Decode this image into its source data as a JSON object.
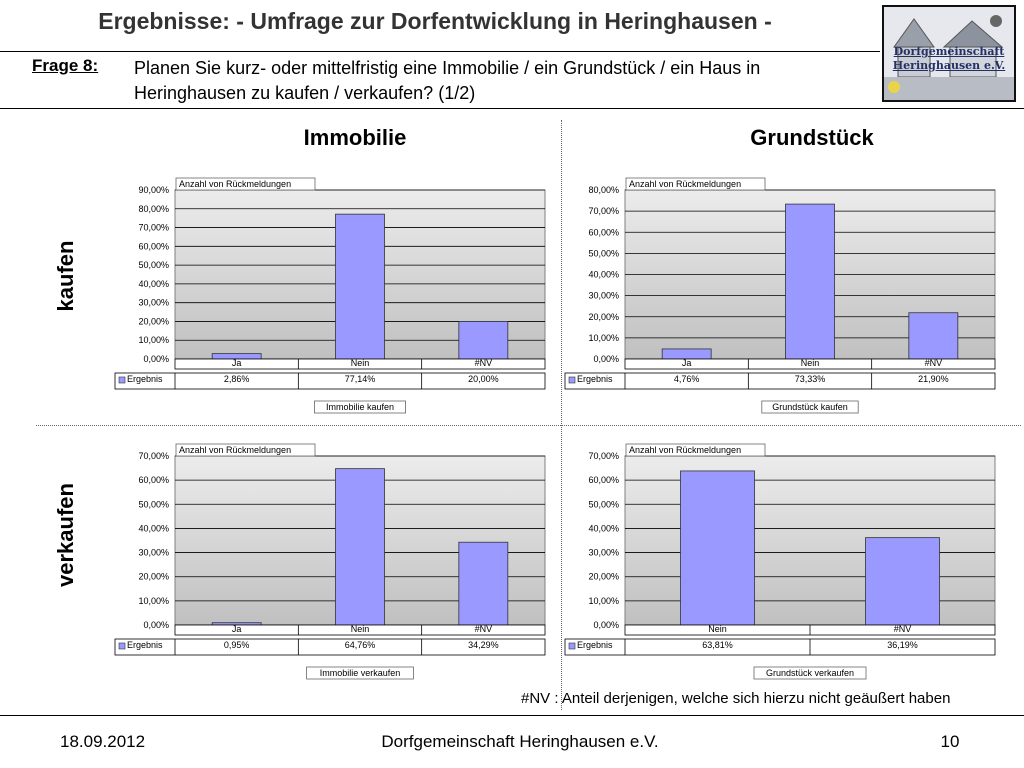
{
  "header": {
    "title": "Ergebnisse: - Umfrage zur Dorfentwicklung in Heringhausen -",
    "logo_line1": "Dorfgemeinschaft",
    "logo_line2": "Heringhausen e.V."
  },
  "question": {
    "label": "Frage 8:",
    "text": "Planen Sie kurz- oder mittelfristig eine Immobilie / ein Grundstück / ein Haus in Heringhausen zu kaufen / verkaufen? (1/2)"
  },
  "columns": {
    "left": "Immobilie",
    "right": "Grundstück"
  },
  "rows": {
    "top": "kaufen",
    "bottom": "verkaufen"
  },
  "note": "#NV :  Anteil derjenigen, welche sich hierzu nicht geäußert haben",
  "footer": {
    "date": "18.09.2012",
    "org": "Dorfgemeinschaft Heringhausen e.V.",
    "page": "10"
  },
  "style": {
    "bar_color": "#9999ff",
    "plot_fill": "#c0c0c0",
    "plot_fill_light": "#ececec"
  },
  "chart_data": [
    {
      "type": "bar",
      "title": "Immobilie kaufen",
      "field_label": "Anzahl von Rückmeldungen",
      "categories": [
        "Ja",
        "Nein",
        "#NV"
      ],
      "series": [
        {
          "name": "Ergebnis",
          "values": [
            2.86,
            77.14,
            20.0
          ]
        }
      ],
      "value_labels": [
        "2,86%",
        "77,14%",
        "20,00%"
      ],
      "ylim": [
        0,
        90
      ],
      "ytick_step": 10,
      "grid": true
    },
    {
      "type": "bar",
      "title": "Grundstück kaufen",
      "field_label": "Anzahl von Rückmeldungen",
      "categories": [
        "Ja",
        "Nein",
        "#NV"
      ],
      "series": [
        {
          "name": "Ergebnis",
          "values": [
            4.76,
            73.33,
            21.9
          ]
        }
      ],
      "value_labels": [
        "4,76%",
        "73,33%",
        "21,90%"
      ],
      "ylim": [
        0,
        80
      ],
      "ytick_step": 10,
      "grid": true
    },
    {
      "type": "bar",
      "title": "Immobilie verkaufen",
      "field_label": "Anzahl von Rückmeldungen",
      "categories": [
        "Ja",
        "Nein",
        "#NV"
      ],
      "series": [
        {
          "name": "Ergebnis",
          "values": [
            0.95,
            64.76,
            34.29
          ]
        }
      ],
      "value_labels": [
        "0,95%",
        "64,76%",
        "34,29%"
      ],
      "ylim": [
        0,
        70
      ],
      "ytick_step": 10,
      "grid": true
    },
    {
      "type": "bar",
      "title": "Grundstück verkaufen",
      "field_label": "Anzahl von Rückmeldungen",
      "categories": [
        "Nein",
        "#NV"
      ],
      "series": [
        {
          "name": "Ergebnis",
          "values": [
            63.81,
            36.19
          ]
        }
      ],
      "value_labels": [
        "63,81%",
        "36,19%"
      ],
      "ylim": [
        0,
        70
      ],
      "ytick_step": 10,
      "grid": true
    }
  ]
}
